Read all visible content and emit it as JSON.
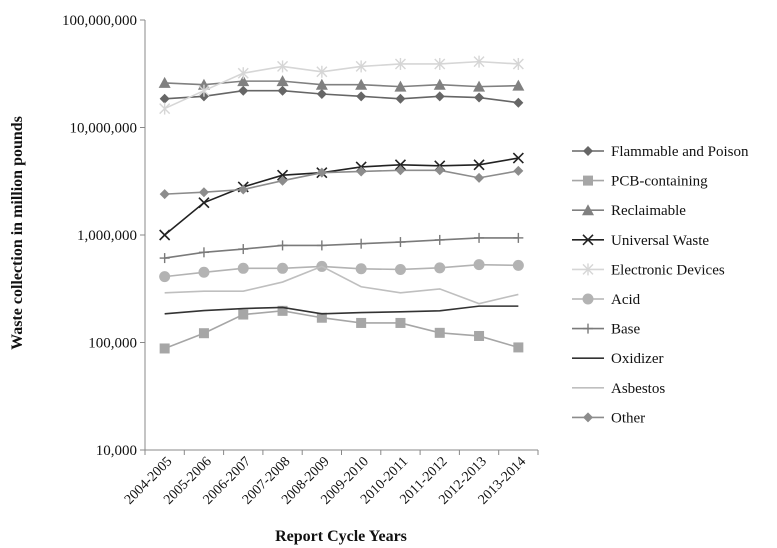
{
  "chart_data": {
    "type": "line",
    "xlabel": "Report Cycle Years",
    "ylabel": "Waste collection in  million pounds",
    "yscale": "log",
    "ylim": [
      10000,
      100000000
    ],
    "yticks": [
      "10,000",
      "100,000",
      "1,000,000",
      "10,000,000",
      "100,000,000"
    ],
    "ytick_values": [
      10000,
      100000,
      1000000,
      10000000,
      100000000
    ],
    "grid": false,
    "legend_position": "right",
    "categories": [
      "2004-2005",
      "2005-2006",
      "2006-2007",
      "2007-2008",
      "2008-2009",
      "2009-2010",
      "2010-2011",
      "2011-2012",
      "2012-2013",
      "2013-2014"
    ],
    "series": [
      {
        "name": "Flammable and Poison",
        "color": "#666666",
        "marker": "diamond",
        "values": [
          18500000,
          19500000,
          22000000,
          22000000,
          20500000,
          19500000,
          18500000,
          19500000,
          19000000,
          17000000
        ]
      },
      {
        "name": "PCB-containing",
        "color": "#a6a6a6",
        "marker": "square",
        "values": [
          88000,
          122000,
          182000,
          197000,
          170000,
          152000,
          152000,
          123000,
          115000,
          90000
        ]
      },
      {
        "name": "Reclaimable",
        "color": "#808080",
        "marker": "triangle",
        "values": [
          26000000,
          25000000,
          27000000,
          27000000,
          25000000,
          25000000,
          24000000,
          25000000,
          24000000,
          24500000
        ]
      },
      {
        "name": "Universal Waste",
        "color": "#222222",
        "marker": "x",
        "values": [
          1000000,
          2000000,
          2800000,
          3600000,
          3800000,
          4300000,
          4500000,
          4400000,
          4500000,
          5200000
        ]
      },
      {
        "name": "Electronic Devices",
        "color": "#d6d6d6",
        "marker": "star",
        "values": [
          15000000,
          22000000,
          32000000,
          37000000,
          33000000,
          37000000,
          39000000,
          39000000,
          41000000,
          39000000
        ]
      },
      {
        "name": "Acid",
        "color": "#b3b3b3",
        "marker": "circle",
        "values": [
          410000,
          450000,
          490000,
          490000,
          510000,
          485000,
          478000,
          495000,
          530000,
          522000
        ]
      },
      {
        "name": "Base",
        "color": "#7a7a7a",
        "marker": "plus",
        "values": [
          610000,
          690000,
          740000,
          800000,
          800000,
          830000,
          860000,
          900000,
          940000,
          940000
        ]
      },
      {
        "name": "Oxidizer",
        "color": "#333333",
        "marker": "dash",
        "values": [
          185000,
          198000,
          207000,
          212000,
          185000,
          190000,
          193000,
          197000,
          218000,
          218000
        ]
      },
      {
        "name": "Asbestos",
        "color": "#bfbfbf",
        "marker": "dash",
        "values": [
          290000,
          300000,
          300000,
          365000,
          510000,
          330000,
          290000,
          315000,
          230000,
          280000
        ]
      },
      {
        "name": "Other",
        "color": "#8c8c8c",
        "marker": "diamond",
        "values": [
          2400000,
          2500000,
          2650000,
          3200000,
          3800000,
          3900000,
          4000000,
          4000000,
          3400000,
          3950000
        ]
      }
    ]
  }
}
